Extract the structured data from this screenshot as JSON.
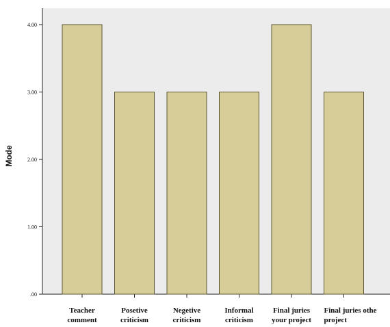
{
  "chart_data": {
    "type": "bar",
    "ylabel": "Mode",
    "xlabel": "",
    "title": "",
    "ylim": [
      0,
      4.4
    ],
    "yticks": [
      {
        "value": 0,
        "label": ".00"
      },
      {
        "value": 1,
        "label": "1.00"
      },
      {
        "value": 2,
        "label": "2.00"
      },
      {
        "value": 3,
        "label": "3.00"
      },
      {
        "value": 4,
        "label": "4.00"
      }
    ],
    "categories": [
      [
        "Teacher",
        "comment"
      ],
      [
        "Posetive",
        "criticism"
      ],
      [
        "Negetive",
        "criticism"
      ],
      [
        "Informal",
        "criticism"
      ],
      [
        "Final juries",
        "your project"
      ],
      [
        "Final juries othe",
        "project"
      ]
    ],
    "values": [
      4,
      3,
      3,
      3,
      4,
      3
    ],
    "colors": {
      "bar_fill": "#d6cd98",
      "bar_stroke": "#5a5632",
      "plot_bg": "#ececec",
      "axis": "#222222"
    }
  }
}
